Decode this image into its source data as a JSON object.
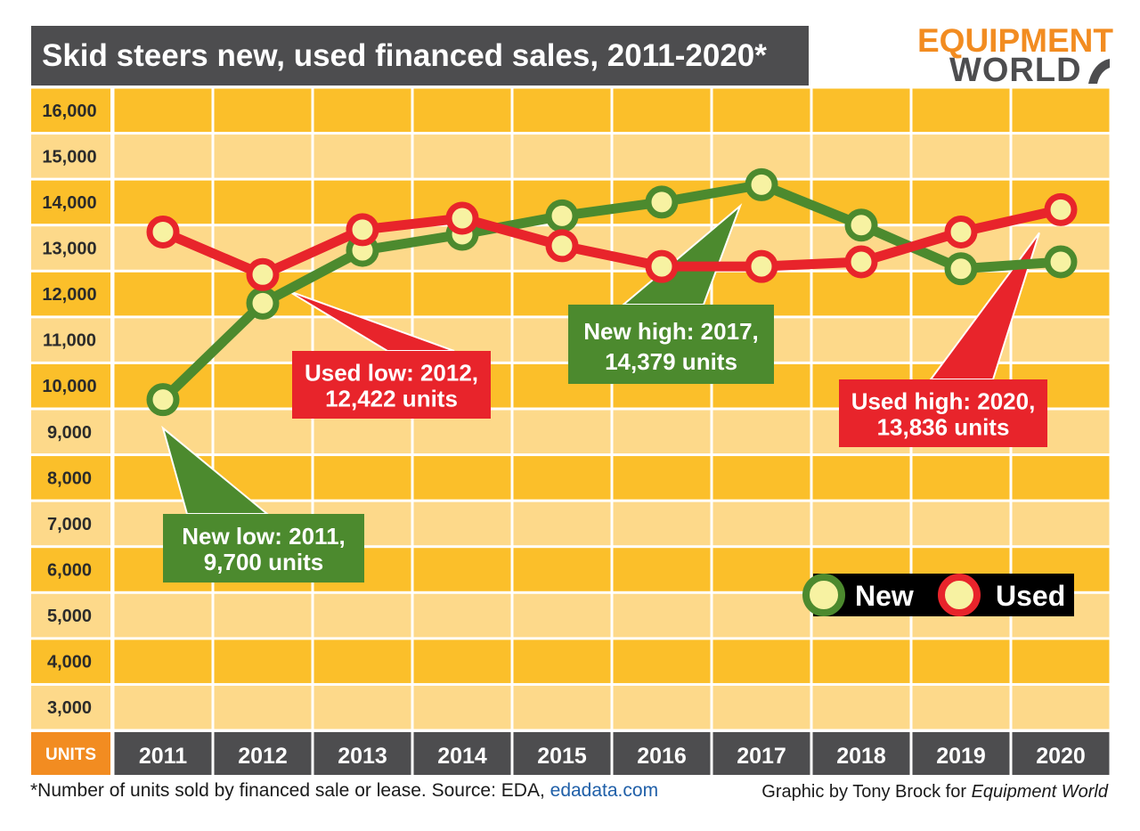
{
  "title": "Skid steers new, used financed sales, 2011-2020*",
  "logo": {
    "line1": "EQUIPMENT",
    "line2": "WORLD"
  },
  "footnote": {
    "text": "*Number of units sold by financed sale or lease. Source: EDA, ",
    "link": "edadata.com"
  },
  "credit": {
    "prefix": "Graphic by Tony Brock for ",
    "publication": "Equipment World"
  },
  "colors": {
    "new": "#4c8a2e",
    "used": "#e8242b",
    "marker_fill": "#f7f2a2",
    "band_dark": "#fbbf2a",
    "band_light": "#fdd98a",
    "axis_bar": "#4d4d4f",
    "units_box": "#f28c21"
  },
  "chart_data": {
    "type": "line",
    "title": "Skid steers new, used financed sales, 2011-2020*",
    "ylabel": "UNITS",
    "categories": [
      "2011",
      "2012",
      "2013",
      "2014",
      "2015",
      "2016",
      "2017",
      "2018",
      "2019",
      "2020"
    ],
    "ylim": [
      2500,
      16500
    ],
    "yticks": [
      3000,
      4000,
      5000,
      6000,
      7000,
      8000,
      9000,
      10000,
      11000,
      12000,
      13000,
      14000,
      15000,
      16000
    ],
    "ytick_labels": [
      "3,000",
      "4,000",
      "5,000",
      "6,000",
      "7,000",
      "8,000",
      "9,000",
      "10,000",
      "11,000",
      "12,000",
      "13,000",
      "14,000",
      "15,000",
      "16,000"
    ],
    "grid": true,
    "legend": "bottom-right",
    "series": [
      {
        "name": "New",
        "key": "new",
        "values": [
          9700,
          11800,
          12950,
          13300,
          13700,
          14000,
          14379,
          13500,
          12550,
          12700
        ]
      },
      {
        "name": "Used",
        "key": "used",
        "values": [
          13350,
          12422,
          13400,
          13650,
          13050,
          12600,
          12600,
          12700,
          13350,
          13836
        ]
      }
    ],
    "annotations": [
      {
        "series": "new",
        "index": 0,
        "line1": "New low: 2011,",
        "line2": "9,700 units"
      },
      {
        "series": "used",
        "index": 1,
        "line1": "Used low: 2012,",
        "line2": "12,422 units"
      },
      {
        "series": "new",
        "index": 6,
        "line1": "New high: 2017,",
        "line2": "14,379 units"
      },
      {
        "series": "used",
        "index": 9,
        "line1": "Used high: 2020,",
        "line2": "13,836 units"
      }
    ]
  }
}
